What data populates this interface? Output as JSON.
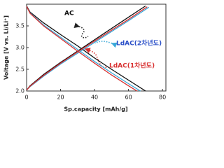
{
  "chart_data": {
    "type": "line",
    "x_label": "Sp.capacity [mAh/g]",
    "y_label": "Voltage [V vs. Li/Li⁺]",
    "xlim": [
      0,
      82
    ],
    "xticks": [
      0,
      20,
      40,
      60,
      80
    ],
    "ylim": [
      2.0,
      4.0
    ],
    "yticks": [
      {
        "value": 2.0,
        "label": "2.0"
      },
      2.5,
      {
        "value": 3.0,
        "label": "3.0"
      },
      3.5
    ],
    "series": [
      {
        "name": "AC",
        "color": "#111111",
        "x": [
          0,
          2,
          10,
          20,
          30,
          40,
          50,
          60,
          70,
          null,
          0,
          2,
          10,
          20,
          30,
          40,
          50,
          60,
          70
        ],
        "values": [
          2.02,
          2.12,
          2.38,
          2.66,
          2.92,
          3.18,
          3.44,
          3.7,
          3.96,
          null,
          3.96,
          3.82,
          3.57,
          3.3,
          3.04,
          2.76,
          2.5,
          2.25,
          2.0
        ]
      },
      {
        "name": "LdAC(2차년도)",
        "color": "#3aa8d8",
        "x": [
          0,
          2,
          10,
          20,
          30,
          40,
          50,
          60,
          72,
          null,
          0,
          2,
          10,
          20,
          30,
          40,
          50,
          60,
          67
        ],
        "values": [
          2.02,
          2.1,
          2.34,
          2.62,
          2.87,
          3.12,
          3.37,
          3.62,
          3.93,
          null,
          3.95,
          3.8,
          3.52,
          3.24,
          2.96,
          2.68,
          2.42,
          2.17,
          2.0
        ]
      },
      {
        "name": "LdAC(1차년도)",
        "color": "#d83030",
        "x": [
          0,
          2,
          10,
          20,
          30,
          40,
          50,
          60,
          71,
          null,
          0,
          2,
          10,
          20,
          30,
          40,
          50,
          60,
          65
        ],
        "values": [
          2.02,
          2.11,
          2.36,
          2.64,
          2.9,
          3.15,
          3.4,
          3.65,
          3.94,
          null,
          3.95,
          3.79,
          3.5,
          3.21,
          2.92,
          2.64,
          2.37,
          2.12,
          2.0
        ]
      }
    ]
  }
}
